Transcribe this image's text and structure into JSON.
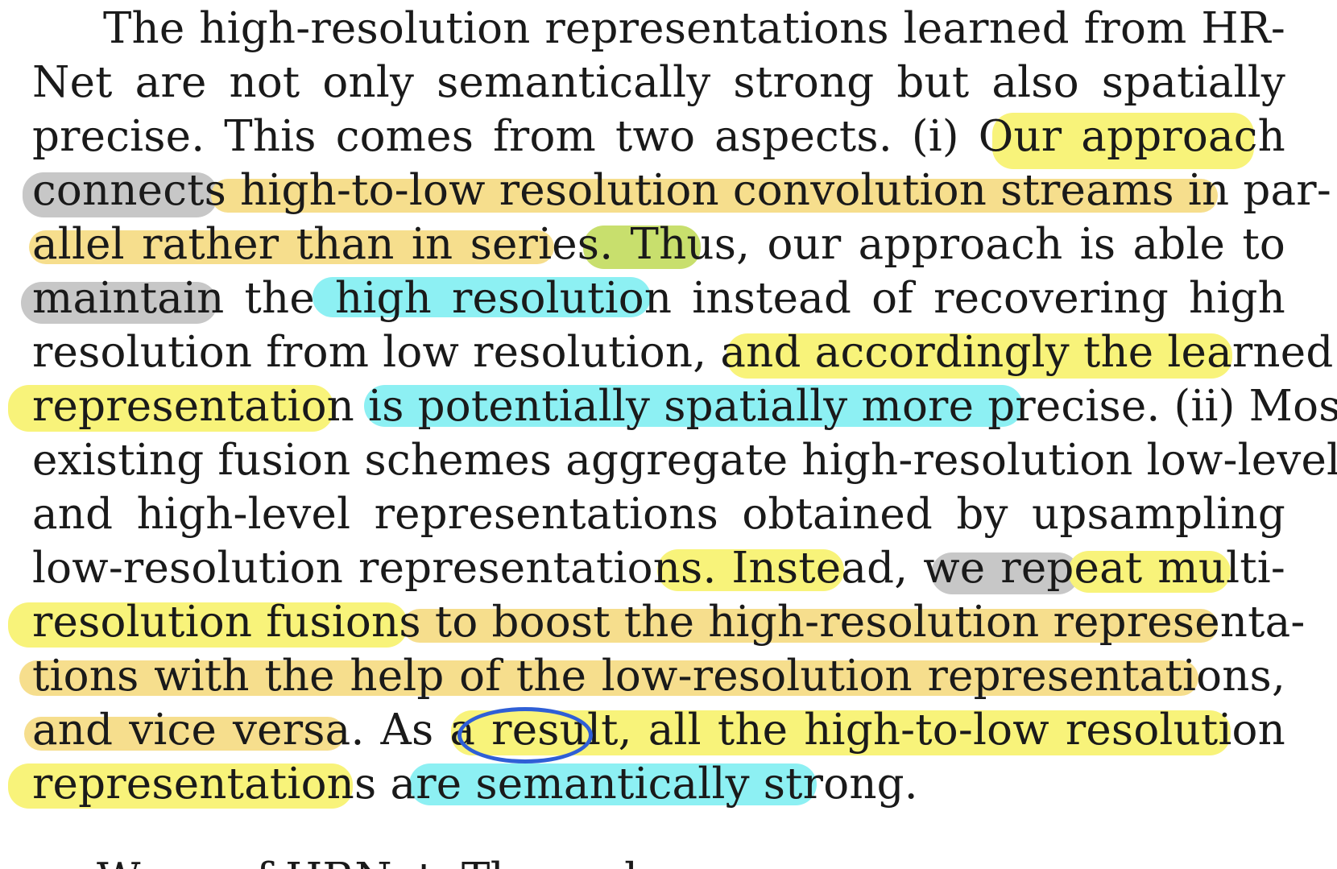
{
  "paragraph": {
    "lines": [
      "The high-resolution representations learned from HR-",
      "Net are not only semantically strong but also spatially",
      "precise. This comes from two aspects. (i) Our approach",
      "connects high-to-low resolution convolution streams in par-",
      "allel rather than in series. Thus, our approach is able to",
      "maintain the high resolution instead of recovering high",
      "resolution from low resolution, and accordingly the learned",
      "representation is potentially spatially more precise. (ii) Most",
      "existing fusion schemes aggregate high-resolution low-level",
      "and high-level representations obtained by upsampling",
      "low-resolution representations. Instead, we repeat multi-",
      "resolution fusions to boost the high-resolution representa-",
      "tions with the help of the low-resolution representations,",
      "and vice versa. As a result, all the high-to-low resolution",
      "representations are semantically strong."
    ],
    "next_line_partial": "We ... of HRNet. The ... d"
  },
  "highlight_colors": {
    "yellow": "#f8f37a",
    "gold": "#f6de8d",
    "gray": "#c7c7c7",
    "cyan": "#8df0f3",
    "green": "#c8df6d",
    "circle": "#2f5fd6"
  }
}
